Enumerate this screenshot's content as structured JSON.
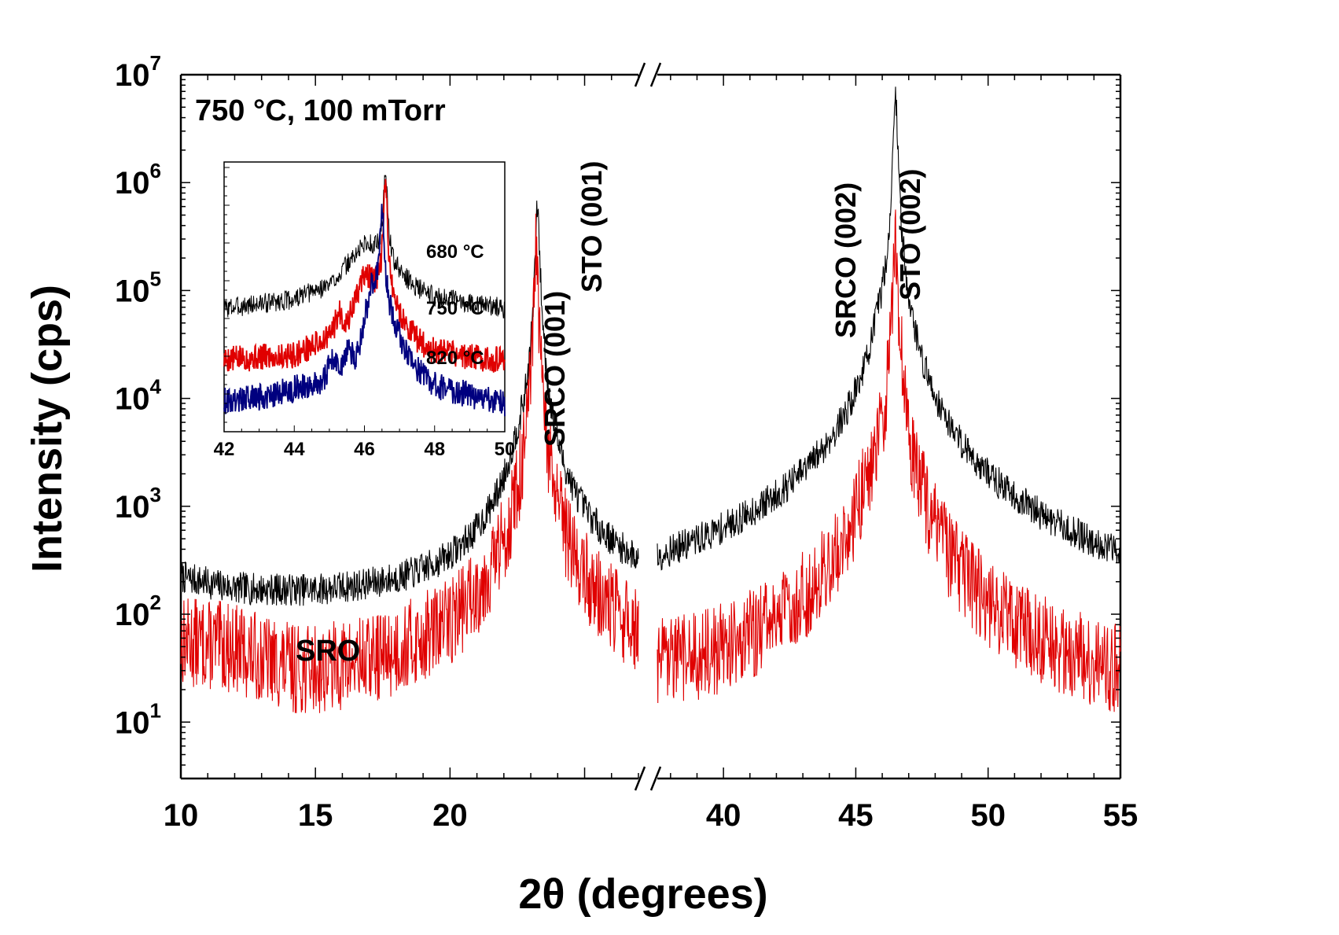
{
  "chart_data": {
    "type": "line",
    "title": "",
    "xlabel": "2θ (degrees)",
    "ylabel": "Intensity (cps)",
    "yscale": "log",
    "ylim": [
      3,
      10000000
    ],
    "axis_break": true,
    "xlim_left": [
      10,
      27
    ],
    "xlim_right": [
      37.5,
      55
    ],
    "x_ticks_left": [
      10,
      15,
      20
    ],
    "x_ticks_right": [
      40,
      45,
      50,
      55
    ],
    "x_tick_labels": [
      "10",
      "15",
      "20",
      "40",
      "45",
      "50",
      "55"
    ],
    "y_ticks": [
      {
        "value": 10,
        "base": "10",
        "exp": "1"
      },
      {
        "value": 100,
        "base": "10",
        "exp": "2"
      },
      {
        "value": 1000,
        "base": "10",
        "exp": "3"
      },
      {
        "value": 10000,
        "base": "10",
        "exp": "4"
      },
      {
        "value": 100000,
        "base": "10",
        "exp": "5"
      },
      {
        "value": 1000000,
        "base": "10",
        "exp": "6"
      },
      {
        "value": 10000000,
        "base": "10",
        "exp": "7"
      }
    ],
    "annotations": {
      "condition": "750 °C, 100 mTorr",
      "sro": "SRO",
      "srco001": "SRCO (001)",
      "sto001": "STO (001)",
      "srco002": "SRCO (002)",
      "sto002": "STO (002)"
    },
    "series": [
      {
        "name": "SRCO",
        "color": "#000000",
        "baseline": [
          [
            10,
            190
          ],
          [
            12,
            135
          ],
          [
            15,
            110
          ],
          [
            20,
            95
          ],
          [
            22,
            110
          ],
          [
            23.2,
            180
          ],
          [
            25,
            180
          ],
          [
            27,
            100
          ],
          [
            37.5,
            35
          ],
          [
            40,
            38
          ],
          [
            43,
            45
          ],
          [
            44.5,
            90
          ],
          [
            45.2,
            300
          ],
          [
            45.5,
            650
          ],
          [
            46.2,
            90
          ],
          [
            47.3,
            220
          ],
          [
            48,
            60
          ],
          [
            50,
            37
          ],
          [
            55,
            32
          ]
        ],
        "peaks": [
          {
            "center": 22.6,
            "height": 1450,
            "width": 0.35
          },
          {
            "center": 23.25,
            "height": 600000,
            "width": 0.06
          },
          {
            "center": 45.95,
            "height": 16500,
            "width": 0.28
          },
          {
            "center": 46.5,
            "height": 6500000,
            "width": 0.06
          }
        ],
        "noise": 0.05,
        "seed": 7
      },
      {
        "name": "SRO",
        "color": "#e00000",
        "baseline": [
          [
            10,
            52
          ],
          [
            12,
            42
          ],
          [
            14.5,
            20
          ],
          [
            17,
            19
          ],
          [
            20,
            22
          ],
          [
            22,
            32
          ],
          [
            23.2,
            60
          ],
          [
            24,
            35
          ],
          [
            25,
            27
          ],
          [
            27,
            22
          ],
          [
            37.5,
            12
          ],
          [
            40,
            10
          ],
          [
            43,
            12
          ],
          [
            44,
            22
          ],
          [
            45,
            45
          ],
          [
            46.3,
            30
          ],
          [
            47,
            28
          ],
          [
            48,
            15
          ],
          [
            50,
            10
          ],
          [
            55,
            9
          ]
        ],
        "peaks": [
          {
            "center": 22.6,
            "height": 110,
            "width": 0.3
          },
          {
            "center": 23.2,
            "height": 260000,
            "width": 0.05
          },
          {
            "center": 45.75,
            "height": 1100,
            "width": 0.38
          },
          {
            "center": 46.5,
            "height": 380000,
            "width": 0.06
          }
        ],
        "noise": 0.14,
        "seed": 13
      }
    ],
    "inset": {
      "xlim": [
        42,
        50
      ],
      "x_ticks": [
        42,
        44,
        46,
        48,
        50
      ],
      "x_tick_labels": [
        "42",
        "44",
        "46",
        "48",
        "50"
      ],
      "series": [
        {
          "name": "680 °C",
          "color": "#000000",
          "baseline": [
            [
              42,
              1.0
            ],
            [
              44,
              1.2
            ],
            [
              45,
              1.6
            ],
            [
              45.5,
              2.4
            ],
            [
              46,
              3.7
            ],
            [
              46.3,
              3.4
            ],
            [
              46.8,
              2.2
            ],
            [
              47.5,
              1.5
            ],
            [
              48,
              1.25
            ],
            [
              50,
              1.0
            ]
          ],
          "peaks": [
            {
              "center": 46.6,
              "height": 14,
              "width": 0.05
            }
          ],
          "noise": 0.03,
          "seed": 3
        },
        {
          "name": "750 °C",
          "color": "#e00000",
          "baseline": [
            [
              42,
              0.35
            ],
            [
              44,
              0.38
            ],
            [
              45,
              0.55
            ],
            [
              45.3,
              0.9
            ],
            [
              45.5,
              0.7
            ],
            [
              46,
              2.0
            ],
            [
              46.3,
              1.5
            ],
            [
              46.8,
              0.9
            ],
            [
              47.5,
              0.5
            ],
            [
              48,
              0.4
            ],
            [
              50,
              0.34
            ]
          ],
          "peaks": [
            {
              "center": 46.6,
              "height": 11,
              "width": 0.05
            }
          ],
          "noise": 0.04,
          "seed": 5
        },
        {
          "name": "820 °C",
          "color": "#00007f",
          "baseline": [
            [
              42,
              0.15
            ],
            [
              43,
              0.16
            ],
            [
              44.8,
              0.22
            ],
            [
              45.1,
              0.35
            ],
            [
              45.3,
              0.28
            ],
            [
              45.55,
              0.45
            ],
            [
              45.75,
              0.3
            ],
            [
              46.2,
              1.5
            ],
            [
              46.4,
              1.4
            ],
            [
              46.8,
              0.7
            ],
            [
              47.3,
              0.32
            ],
            [
              48,
              0.2
            ],
            [
              50,
              0.14
            ]
          ],
          "peaks": [
            {
              "center": 46.5,
              "height": 6.5,
              "width": 0.05
            }
          ],
          "noise": 0.04,
          "seed": 9
        }
      ]
    }
  }
}
